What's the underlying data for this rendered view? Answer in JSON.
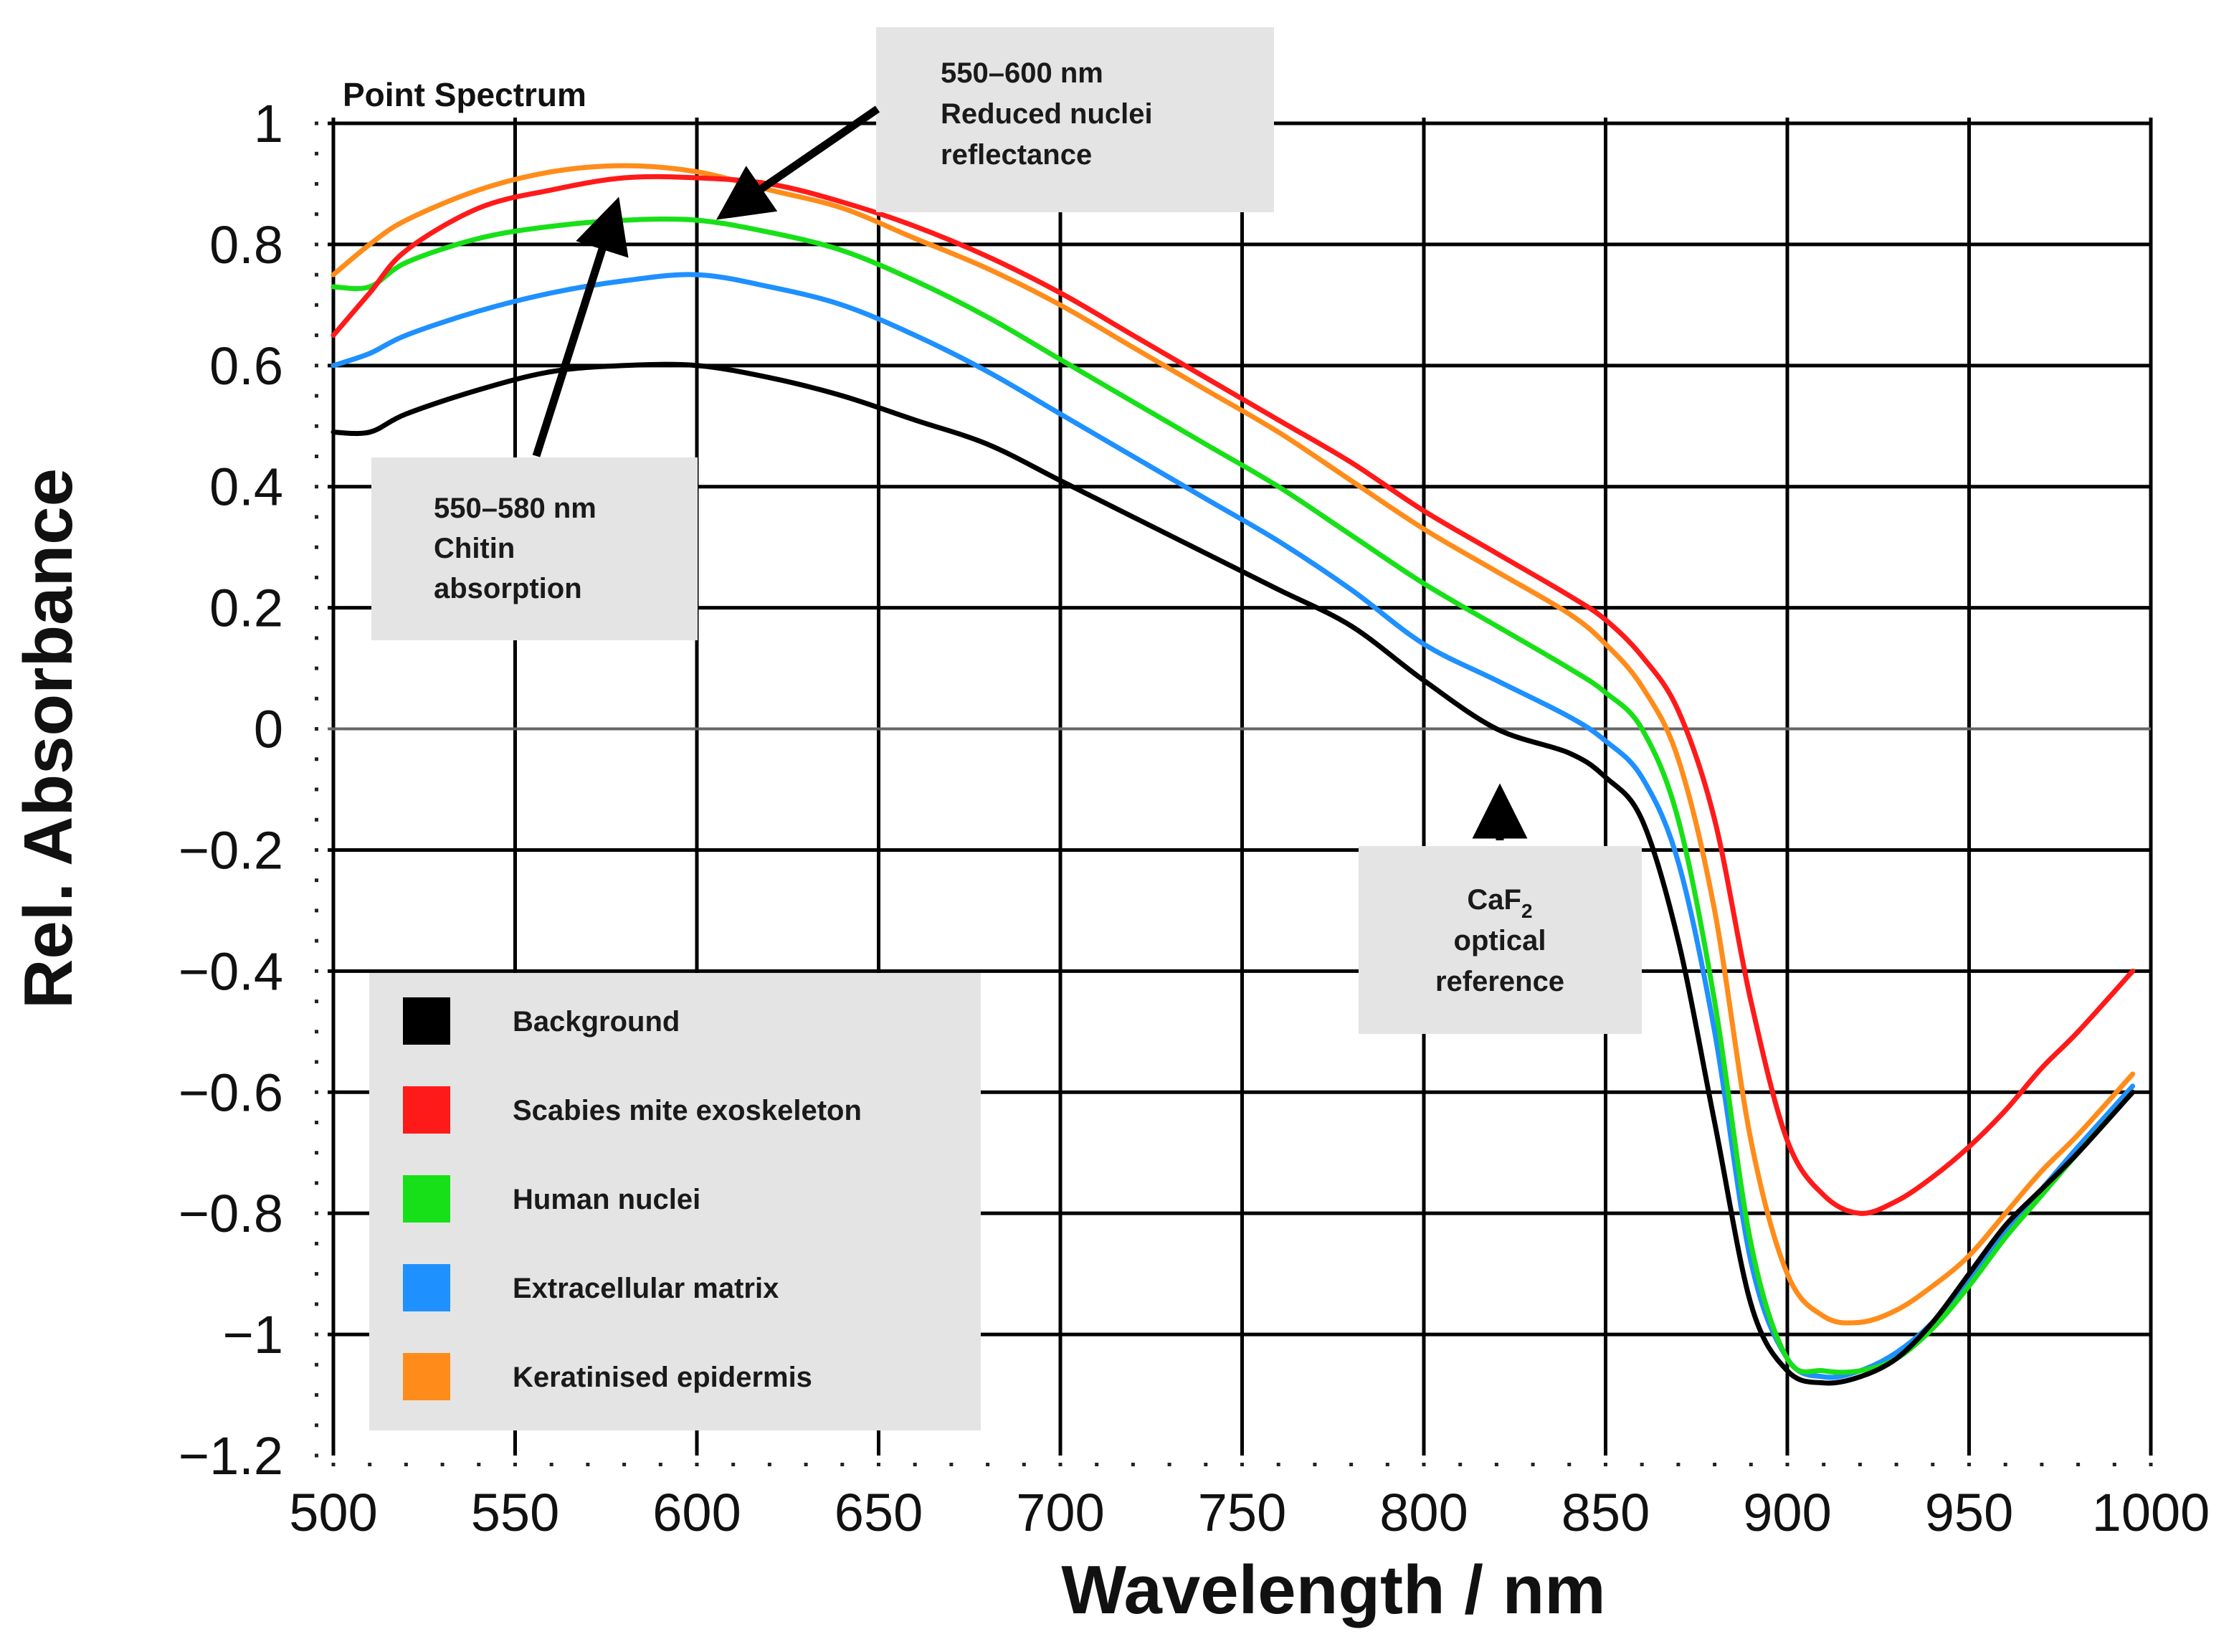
{
  "chart_data": {
    "type": "line",
    "title": "Point Spectrum",
    "xlabel": "Wavelength / nm",
    "ylabel": "Rel. Absorbance",
    "xlim": [
      500,
      1000
    ],
    "ylim": [
      -1.2,
      1.0
    ],
    "grid": true,
    "xticks": [
      500,
      550,
      600,
      650,
      700,
      750,
      800,
      850,
      900,
      950,
      1000
    ],
    "xtick_labels": [
      "500",
      "550",
      "600",
      "650",
      "700",
      "750",
      "800",
      "850",
      "900",
      "950",
      "1000"
    ],
    "yticks": [
      1,
      0.8,
      0.6,
      0.4,
      0.2,
      0,
      -0.2,
      -0.4,
      -0.6,
      -0.8,
      -1,
      -1.2
    ],
    "ytick_labels": [
      "1",
      "0.8",
      "0.6",
      "0.4",
      "0.2",
      "0",
      "−0.2",
      "−0.4",
      "−0.6",
      "−0.8",
      "−1",
      "−1.2"
    ],
    "legend_position": "bottom-left",
    "series": [
      {
        "name": "Background",
        "color": "#000000",
        "x": [
          500,
          510,
          520,
          540,
          560,
          580,
          600,
          620,
          640,
          660,
          680,
          700,
          720,
          740,
          760,
          780,
          800,
          820,
          840,
          850,
          860,
          870,
          880,
          890,
          900,
          910,
          920,
          930,
          940,
          950,
          960,
          970,
          980,
          995
        ],
        "y": [
          0.49,
          0.49,
          0.52,
          0.56,
          0.59,
          0.6,
          0.6,
          0.58,
          0.55,
          0.51,
          0.47,
          0.41,
          0.35,
          0.29,
          0.23,
          0.17,
          0.08,
          0.0,
          -0.04,
          -0.08,
          -0.15,
          -0.35,
          -0.65,
          -0.95,
          -1.06,
          -1.08,
          -1.07,
          -1.04,
          -0.98,
          -0.9,
          -0.82,
          -0.76,
          -0.7,
          -0.6
        ]
      },
      {
        "name": "Scabies mite exoskeleton",
        "color": "#ff1a1a",
        "x": [
          500,
          510,
          520,
          540,
          560,
          580,
          600,
          620,
          640,
          660,
          680,
          700,
          720,
          740,
          760,
          780,
          800,
          820,
          840,
          850,
          860,
          870,
          880,
          890,
          900,
          910,
          920,
          930,
          940,
          950,
          960,
          970,
          980,
          995
        ],
        "y": [
          0.65,
          0.72,
          0.79,
          0.86,
          0.89,
          0.91,
          0.91,
          0.9,
          0.87,
          0.83,
          0.78,
          0.72,
          0.65,
          0.58,
          0.51,
          0.44,
          0.36,
          0.29,
          0.22,
          0.18,
          0.12,
          0.03,
          -0.15,
          -0.45,
          -0.68,
          -0.77,
          -0.8,
          -0.78,
          -0.74,
          -0.69,
          -0.63,
          -0.56,
          -0.5,
          -0.4
        ]
      },
      {
        "name": "Human nuclei",
        "color": "#18e018",
        "x": [
          500,
          510,
          520,
          540,
          560,
          580,
          600,
          620,
          640,
          660,
          680,
          700,
          720,
          740,
          760,
          780,
          800,
          820,
          840,
          850,
          860,
          870,
          880,
          890,
          900,
          910,
          920,
          930,
          940,
          950,
          960,
          970,
          980,
          995
        ],
        "y": [
          0.73,
          0.73,
          0.77,
          0.81,
          0.83,
          0.84,
          0.84,
          0.82,
          0.79,
          0.74,
          0.68,
          0.61,
          0.54,
          0.47,
          0.4,
          0.32,
          0.24,
          0.17,
          0.1,
          0.06,
          0.0,
          -0.15,
          -0.45,
          -0.85,
          -1.04,
          -1.06,
          -1.06,
          -1.04,
          -0.99,
          -0.92,
          -0.84,
          -0.77,
          -0.7,
          -0.6
        ]
      },
      {
        "name": "Extracellular matrix",
        "color": "#1e90ff",
        "x": [
          500,
          510,
          520,
          540,
          560,
          580,
          600,
          620,
          640,
          660,
          680,
          700,
          720,
          740,
          760,
          780,
          800,
          820,
          840,
          850,
          860,
          870,
          880,
          890,
          900,
          910,
          920,
          930,
          940,
          950,
          960,
          970,
          980,
          995
        ],
        "y": [
          0.6,
          0.62,
          0.65,
          0.69,
          0.72,
          0.74,
          0.75,
          0.73,
          0.7,
          0.65,
          0.59,
          0.52,
          0.45,
          0.38,
          0.31,
          0.23,
          0.14,
          0.08,
          0.02,
          -0.02,
          -0.08,
          -0.22,
          -0.5,
          -0.88,
          -1.04,
          -1.07,
          -1.06,
          -1.03,
          -0.98,
          -0.91,
          -0.83,
          -0.76,
          -0.69,
          -0.59
        ]
      },
      {
        "name": "Keratinised epidermis",
        "color": "#ff8c1a",
        "x": [
          500,
          510,
          520,
          540,
          560,
          580,
          600,
          620,
          640,
          660,
          680,
          700,
          720,
          740,
          760,
          780,
          800,
          820,
          840,
          850,
          860,
          870,
          880,
          890,
          900,
          910,
          920,
          930,
          940,
          950,
          960,
          970,
          980,
          995
        ],
        "y": [
          0.75,
          0.8,
          0.84,
          0.89,
          0.92,
          0.93,
          0.92,
          0.89,
          0.86,
          0.81,
          0.76,
          0.7,
          0.63,
          0.56,
          0.49,
          0.41,
          0.33,
          0.26,
          0.19,
          0.14,
          0.07,
          -0.05,
          -0.3,
          -0.68,
          -0.9,
          -0.97,
          -0.98,
          -0.96,
          -0.92,
          -0.87,
          -0.8,
          -0.73,
          -0.67,
          -0.57
        ]
      }
    ],
    "annotations": [
      {
        "id": "nuclei",
        "lines": [
          "550–600 nm",
          "Reduced nuclei",
          "reflectance"
        ],
        "target_x": 605,
        "target_y": 0.88
      },
      {
        "id": "chitin",
        "lines": [
          "550–580 nm",
          "Chitin",
          "absorption"
        ],
        "target_x": 575,
        "target_y": 0.88
      },
      {
        "id": "caf2",
        "lines": [
          "CaF",
          "2",
          "optical",
          "reference"
        ],
        "target_x": 822,
        "target_y": -0.04
      }
    ]
  }
}
